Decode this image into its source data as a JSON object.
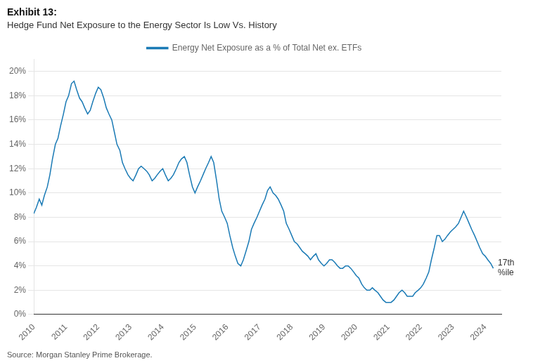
{
  "chart_data": {
    "type": "line",
    "title": "Exhibit 13:",
    "subtitle": "Hedge Fund Net Exposure to the Energy Sector Is Low Vs. History",
    "source": "Source: Morgan Stanley Prime Brokerage.",
    "annotations": [
      {
        "text": "17th\n%ile",
        "x": 2024.35,
        "y": 3.8
      }
    ],
    "legend": "top",
    "grid": true,
    "xlim": [
      2010,
      2024.5
    ],
    "xticks": [
      2010,
      2011,
      2012,
      2013,
      2014,
      2015,
      2016,
      2017,
      2018,
      2019,
      2020,
      2021,
      2022,
      2023,
      2024
    ],
    "ylim": [
      0,
      21
    ],
    "yticks": [
      {
        "value": 0,
        "label": "0%"
      },
      {
        "value": 2,
        "label": "2%"
      },
      {
        "value": 4,
        "label": "4%"
      },
      {
        "value": 6,
        "label": "6%"
      },
      {
        "value": 8,
        "label": "8%"
      },
      {
        "value": 10,
        "label": "10%"
      },
      {
        "value": 12,
        "label": "12%"
      },
      {
        "value": 14,
        "label": "14%"
      },
      {
        "value": 16,
        "label": "16%"
      },
      {
        "value": 18,
        "label": "18%"
      },
      {
        "value": 20,
        "label": "20%"
      }
    ],
    "x": [
      2010.0,
      2010.08,
      2010.17,
      2010.25,
      2010.33,
      2010.42,
      2010.5,
      2010.58,
      2010.67,
      2010.75,
      2010.83,
      2010.92,
      2011.0,
      2011.08,
      2011.17,
      2011.25,
      2011.33,
      2011.42,
      2011.5,
      2011.58,
      2011.67,
      2011.75,
      2011.83,
      2011.92,
      2012.0,
      2012.08,
      2012.17,
      2012.25,
      2012.33,
      2012.42,
      2012.5,
      2012.58,
      2012.67,
      2012.75,
      2012.83,
      2012.92,
      2013.0,
      2013.08,
      2013.17,
      2013.25,
      2013.33,
      2013.42,
      2013.5,
      2013.58,
      2013.67,
      2013.75,
      2013.83,
      2013.92,
      2014.0,
      2014.08,
      2014.17,
      2014.25,
      2014.33,
      2014.42,
      2014.5,
      2014.58,
      2014.67,
      2014.75,
      2014.83,
      2014.92,
      2015.0,
      2015.08,
      2015.17,
      2015.25,
      2015.33,
      2015.42,
      2015.5,
      2015.58,
      2015.67,
      2015.75,
      2015.83,
      2015.92,
      2016.0,
      2016.08,
      2016.17,
      2016.25,
      2016.33,
      2016.42,
      2016.5,
      2016.58,
      2016.67,
      2016.75,
      2016.83,
      2016.92,
      2017.0,
      2017.08,
      2017.17,
      2017.25,
      2017.33,
      2017.42,
      2017.5,
      2017.58,
      2017.67,
      2017.75,
      2017.83,
      2017.92,
      2018.0,
      2018.08,
      2018.17,
      2018.25,
      2018.33,
      2018.42,
      2018.5,
      2018.58,
      2018.67,
      2018.75,
      2018.83,
      2018.92,
      2019.0,
      2019.08,
      2019.17,
      2019.25,
      2019.33,
      2019.42,
      2019.5,
      2019.58,
      2019.67,
      2019.75,
      2019.83,
      2019.92,
      2020.0,
      2020.08,
      2020.17,
      2020.25,
      2020.33,
      2020.42,
      2020.5,
      2020.58,
      2020.67,
      2020.75,
      2020.83,
      2020.92,
      2021.0,
      2021.08,
      2021.17,
      2021.25,
      2021.33,
      2021.42,
      2021.5,
      2021.58,
      2021.67,
      2021.75,
      2021.83,
      2021.92,
      2022.0,
      2022.08,
      2022.17,
      2022.25,
      2022.33,
      2022.42,
      2022.5,
      2022.58,
      2022.67,
      2022.75,
      2022.83,
      2022.92,
      2023.0,
      2023.08,
      2023.17,
      2023.25,
      2023.33,
      2023.42,
      2023.5,
      2023.58,
      2023.67,
      2023.75,
      2023.83,
      2023.92,
      2024.0,
      2024.08,
      2024.17,
      2024.25
    ],
    "series": [
      {
        "name": "Energy Net Exposure as a % of Total Net ex. ETFs",
        "color": "#1a7ab5",
        "values": [
          8.3,
          8.8,
          9.5,
          9.0,
          9.8,
          10.5,
          11.5,
          12.8,
          14.0,
          14.5,
          15.5,
          16.5,
          17.5,
          18.0,
          19.0,
          19.2,
          18.5,
          17.8,
          17.5,
          17.0,
          16.5,
          16.8,
          17.5,
          18.2,
          18.7,
          18.5,
          17.8,
          17.0,
          16.5,
          16.0,
          15.0,
          14.0,
          13.5,
          12.5,
          12.0,
          11.5,
          11.2,
          11.0,
          11.5,
          12.0,
          12.2,
          12.0,
          11.8,
          11.5,
          11.0,
          11.2,
          11.5,
          11.8,
          12.0,
          11.5,
          11.0,
          11.2,
          11.5,
          12.0,
          12.5,
          12.8,
          13.0,
          12.5,
          11.5,
          10.5,
          10.0,
          10.5,
          11.0,
          11.5,
          12.0,
          12.5,
          13.0,
          12.5,
          11.0,
          9.5,
          8.5,
          8.0,
          7.5,
          6.5,
          5.5,
          4.8,
          4.2,
          4.0,
          4.5,
          5.2,
          6.0,
          7.0,
          7.5,
          8.0,
          8.5,
          9.0,
          9.5,
          10.2,
          10.5,
          10.0,
          9.8,
          9.5,
          9.0,
          8.5,
          7.5,
          7.0,
          6.5,
          6.0,
          5.8,
          5.5,
          5.2,
          5.0,
          4.8,
          4.5,
          4.8,
          5.0,
          4.5,
          4.2,
          4.0,
          4.2,
          4.5,
          4.5,
          4.3,
          4.0,
          3.8,
          3.8,
          4.0,
          4.0,
          3.8,
          3.5,
          3.2,
          3.0,
          2.5,
          2.2,
          2.0,
          2.0,
          2.2,
          2.0,
          1.8,
          1.5,
          1.2,
          1.0,
          1.0,
          1.0,
          1.2,
          1.5,
          1.8,
          2.0,
          1.8,
          1.5,
          1.5,
          1.5,
          1.8,
          2.0,
          2.2,
          2.5,
          3.0,
          3.5,
          4.5,
          5.5,
          6.5,
          6.5,
          6.0,
          6.2,
          6.5,
          6.8,
          7.0,
          7.2,
          7.5,
          8.0,
          8.5,
          8.0,
          7.5,
          7.0,
          6.5,
          6.0,
          5.5,
          5.0,
          4.8,
          4.5,
          4.2,
          3.8
        ]
      }
    ]
  }
}
